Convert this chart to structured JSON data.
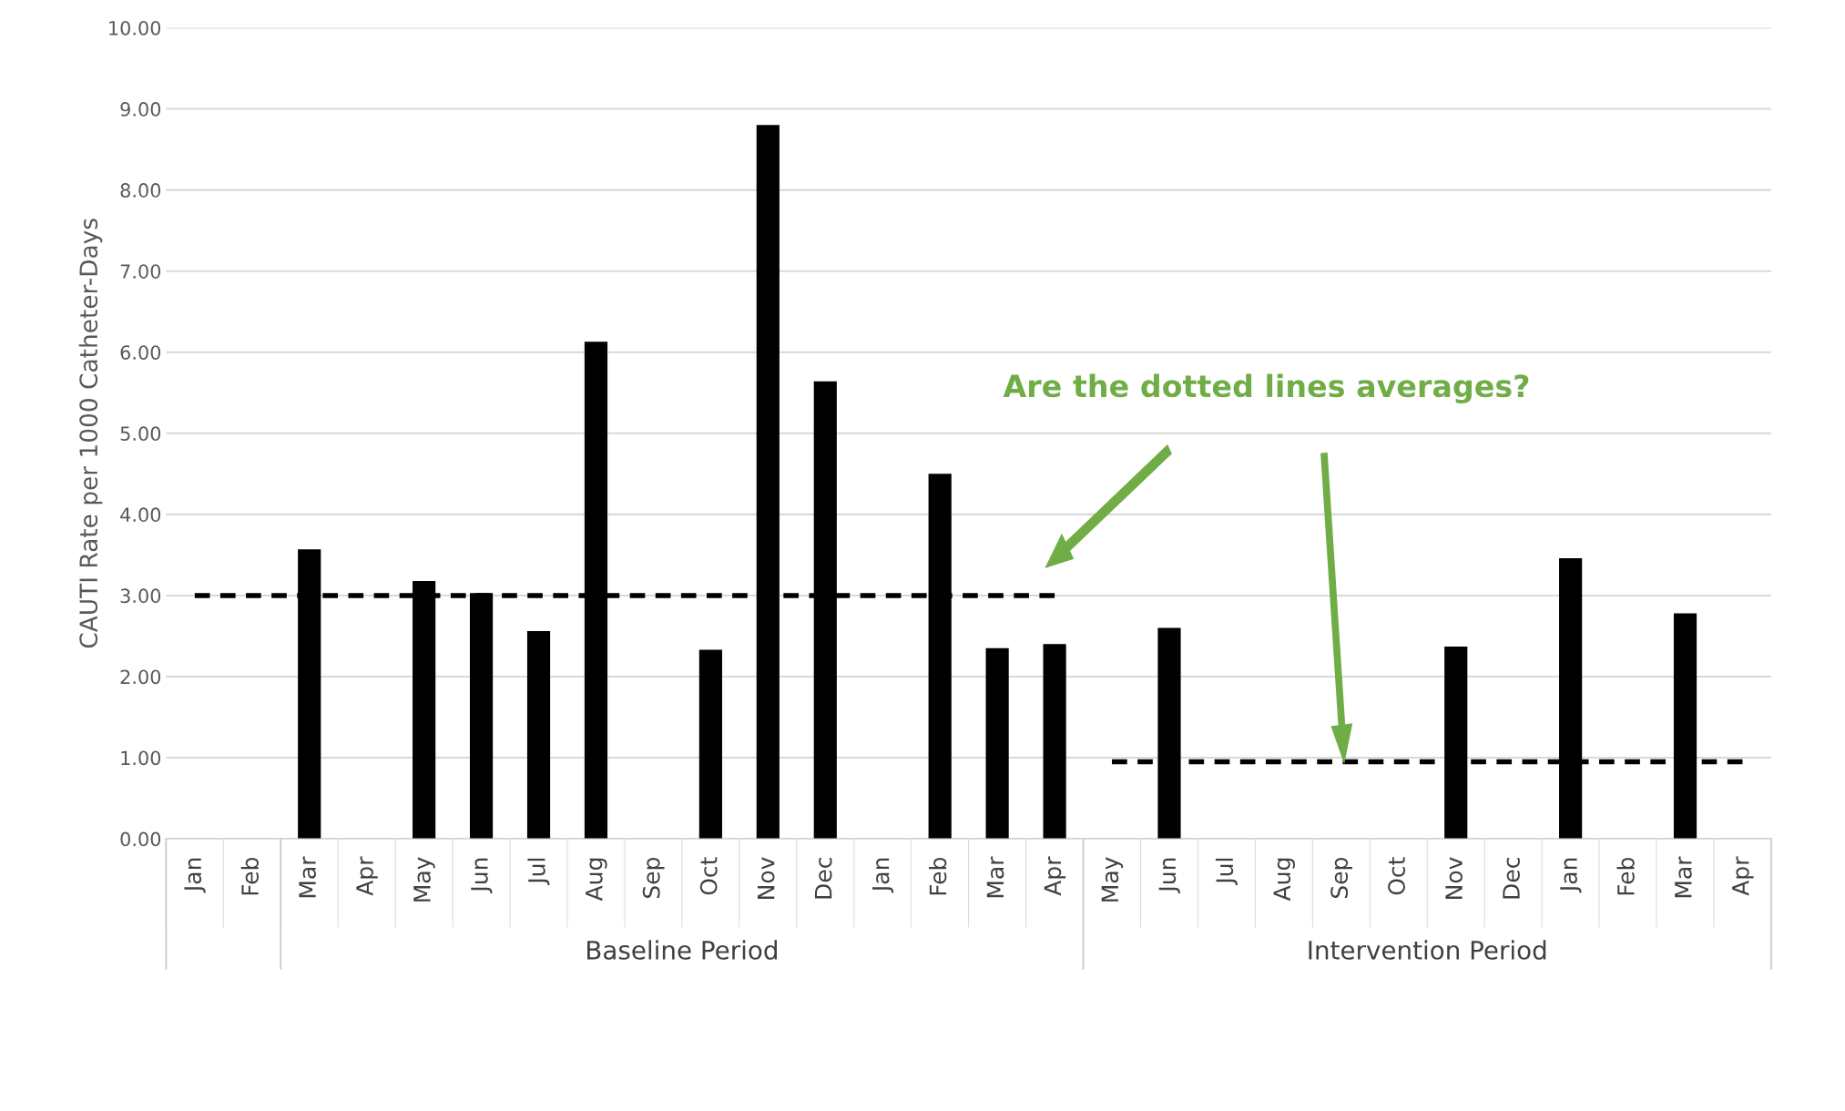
{
  "chart_data": {
    "type": "bar",
    "ylabel": "CAUTI Rate per 1000 Catheter-Days",
    "categories": [
      "Jan",
      "Feb",
      "Mar",
      "Apr",
      "May",
      "Jun",
      "Jul",
      "Aug",
      "Sep",
      "Oct",
      "Nov",
      "Dec",
      "Jan",
      "Feb",
      "Mar",
      "Apr",
      "May",
      "Jun",
      "Jul",
      "Aug",
      "Sep",
      "Oct",
      "Nov",
      "Dec",
      "Jan",
      "Feb",
      "Mar",
      "Apr"
    ],
    "series": [
      {
        "color": "#000000",
        "values": [
          0,
          0,
          3.57,
          0,
          3.18,
          3.03,
          2.56,
          6.13,
          0,
          2.33,
          8.8,
          5.64,
          0,
          4.5,
          2.35,
          2.4,
          0,
          2.6,
          0,
          0,
          0,
          0,
          2.37,
          0,
          3.46,
          0,
          2.78,
          0
        ]
      },
      {
        "type": "line",
        "color": "#000000",
        "line_style": "dashed",
        "values": [
          3.0,
          3.0,
          3.0,
          3.0,
          3.0,
          3.0,
          3.0,
          3.0,
          3.0,
          3.0,
          3.0,
          3.0,
          3.0,
          3.0,
          3.0,
          3.0,
          null,
          null,
          null,
          null,
          null,
          null,
          null,
          null,
          null,
          null,
          null,
          null
        ]
      },
      {
        "type": "line",
        "color": "#000000",
        "line_style": "dashed",
        "values": [
          null,
          null,
          null,
          null,
          null,
          null,
          null,
          null,
          null,
          null,
          null,
          null,
          null,
          null,
          null,
          null,
          0.95,
          0.95,
          0.95,
          0.95,
          0.95,
          0.95,
          0.95,
          0.95,
          0.95,
          0.95,
          0.95,
          0.95
        ]
      }
    ],
    "ylim": [
      0,
      10
    ],
    "yticks": [
      {
        "value": 0,
        "label": "0.00"
      },
      {
        "value": 1,
        "label": "1.00"
      },
      {
        "value": 2,
        "label": "2.00"
      },
      {
        "value": 3,
        "label": "3.00"
      },
      {
        "value": 4,
        "label": "4.00"
      },
      {
        "value": 5,
        "label": "5.00"
      },
      {
        "value": 6,
        "label": "6.00"
      },
      {
        "value": 7,
        "label": "7.00"
      },
      {
        "value": 8,
        "label": "8.00"
      },
      {
        "value": 9,
        "label": "9.00"
      },
      {
        "value": 10,
        "label": "10.00"
      }
    ],
    "grid": "y",
    "annotations": [
      "Are the dotted lines averages?",
      "Baseline Period",
      "Intervention Period"
    ]
  }
}
